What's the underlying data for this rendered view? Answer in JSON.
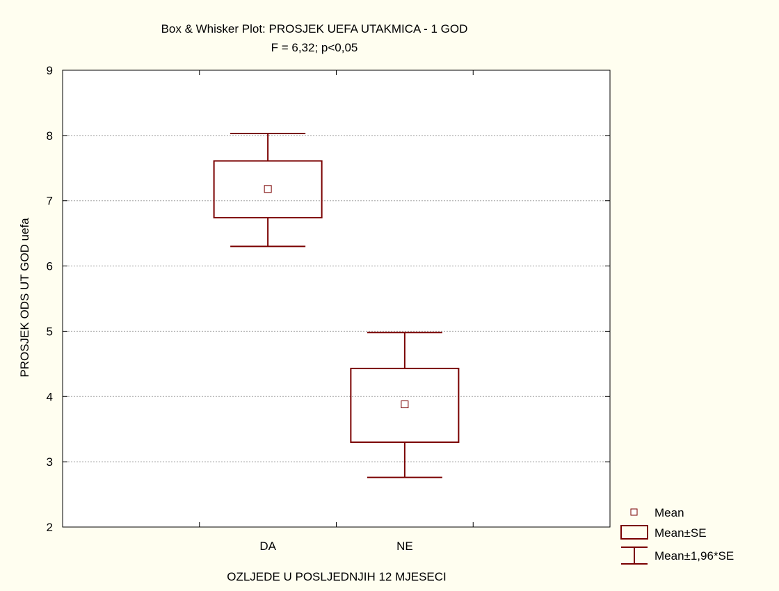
{
  "chart_data": {
    "type": "box",
    "title": "Box & Whisker Plot: PROSJEK UEFA UTAKMICA - 1 GOD",
    "subtitle": "F = 6,32; p<0,05",
    "xlabel": "OZLJEDE U POSLJEDNJIH 12 MJESECI",
    "ylabel": "PROSJEK ODS UT GOD uefa",
    "ylim": [
      2,
      9
    ],
    "yticks": [
      2,
      3,
      4,
      5,
      6,
      7,
      8,
      9
    ],
    "categories": [
      "DA",
      "NE"
    ],
    "x_range": [
      0,
      4
    ],
    "x_positions": [
      1.5,
      2.5
    ],
    "grid": true,
    "legend_position": "bottom-right",
    "series": [
      {
        "category": "DA",
        "mean": 7.18,
        "se_low": 6.74,
        "se_high": 7.61,
        "ci_low": 6.3,
        "ci_high": 8.03
      },
      {
        "category": "NE",
        "mean": 3.88,
        "se_low": 3.3,
        "se_high": 4.43,
        "ci_low": 2.76,
        "ci_high": 4.98
      }
    ],
    "legend": [
      {
        "symbol": "mean-marker",
        "label": "Mean"
      },
      {
        "symbol": "box",
        "label": "Mean±SE"
      },
      {
        "symbol": "whisker",
        "label": "Mean±1,96*SE"
      }
    ],
    "colors": {
      "box": "#7a0000",
      "background": "#fffef0",
      "plot_bg": "#ffffff",
      "grid": "#a0a0a0"
    }
  }
}
